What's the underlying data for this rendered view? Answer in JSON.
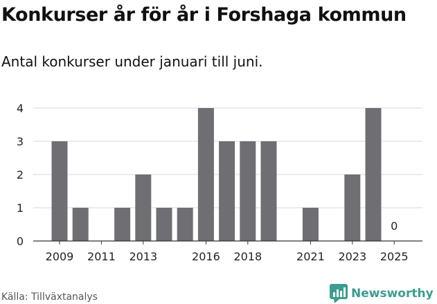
{
  "chart_data": {
    "type": "bar",
    "title": "Konkurser år för år i Forshaga kommun",
    "subtitle": "Antal konkurser under januari till juni.",
    "categories": [
      "2009",
      "2010",
      "2011",
      "2012",
      "2013",
      "2014",
      "2015",
      "2016",
      "2017",
      "2018",
      "2019",
      "2020",
      "2021",
      "2022",
      "2023",
      "2024",
      "2025"
    ],
    "values": [
      3,
      1,
      0,
      1,
      2,
      1,
      1,
      4,
      3,
      3,
      3,
      0,
      1,
      0,
      2,
      4,
      0
    ],
    "x_tick_labels": [
      "2009",
      "2011",
      "2013",
      "2016",
      "2018",
      "2021",
      "2023",
      "2025"
    ],
    "y_ticks": [
      "0",
      "1",
      "2",
      "3",
      "4"
    ],
    "ylim": [
      0,
      4
    ],
    "xlabel": "",
    "ylabel": "",
    "grid": true,
    "annotations": [
      {
        "category": "2025",
        "text": "0"
      }
    ],
    "colors": {
      "bar": "#6f6e73",
      "grid": "#d9d9d9",
      "axis": "#333333"
    }
  },
  "footer": {
    "source": "Källa: Tillväxtanalys",
    "brand": "Newsworthy",
    "brand_icon": "bar-chart-bubble-icon",
    "brand_color": "#3a9d90"
  }
}
